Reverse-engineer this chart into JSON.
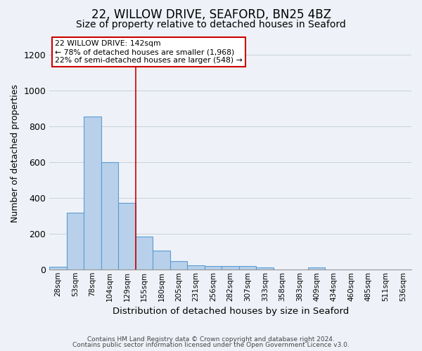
{
  "title1": "22, WILLOW DRIVE, SEAFORD, BN25 4BZ",
  "title2": "Size of property relative to detached houses in Seaford",
  "xlabel": "Distribution of detached houses by size in Seaford",
  "ylabel": "Number of detached properties",
  "categories": [
    "28sqm",
    "53sqm",
    "78sqm",
    "104sqm",
    "129sqm",
    "155sqm",
    "180sqm",
    "205sqm",
    "231sqm",
    "256sqm",
    "282sqm",
    "307sqm",
    "333sqm",
    "358sqm",
    "383sqm",
    "409sqm",
    "434sqm",
    "460sqm",
    "485sqm",
    "511sqm",
    "536sqm"
  ],
  "values": [
    15,
    315,
    855,
    600,
    370,
    185,
    105,
    47,
    22,
    18,
    18,
    18,
    10,
    0,
    0,
    10,
    0,
    0,
    0,
    0,
    0
  ],
  "bar_color": "#b8d0ea",
  "bar_edge_color": "#5b9bd5",
  "grid_color": "#c8d0dc",
  "annotation_text_line1": "22 WILLOW DRIVE: 142sqm",
  "annotation_text_line2": "← 78% of detached houses are smaller (1,968)",
  "annotation_text_line3": "22% of semi-detached houses are larger (548) →",
  "annotation_box_color": "#ffffff",
  "annotation_box_edge": "#cc0000",
  "ylim": [
    0,
    1300
  ],
  "yticks": [
    0,
    200,
    400,
    600,
    800,
    1000,
    1200
  ],
  "footer1": "Contains HM Land Registry data © Crown copyright and database right 2024.",
  "footer2": "Contains public sector information licensed under the Open Government Licence v3.0.",
  "bg_color": "#eef2f8",
  "title1_fontsize": 12,
  "title2_fontsize": 10
}
